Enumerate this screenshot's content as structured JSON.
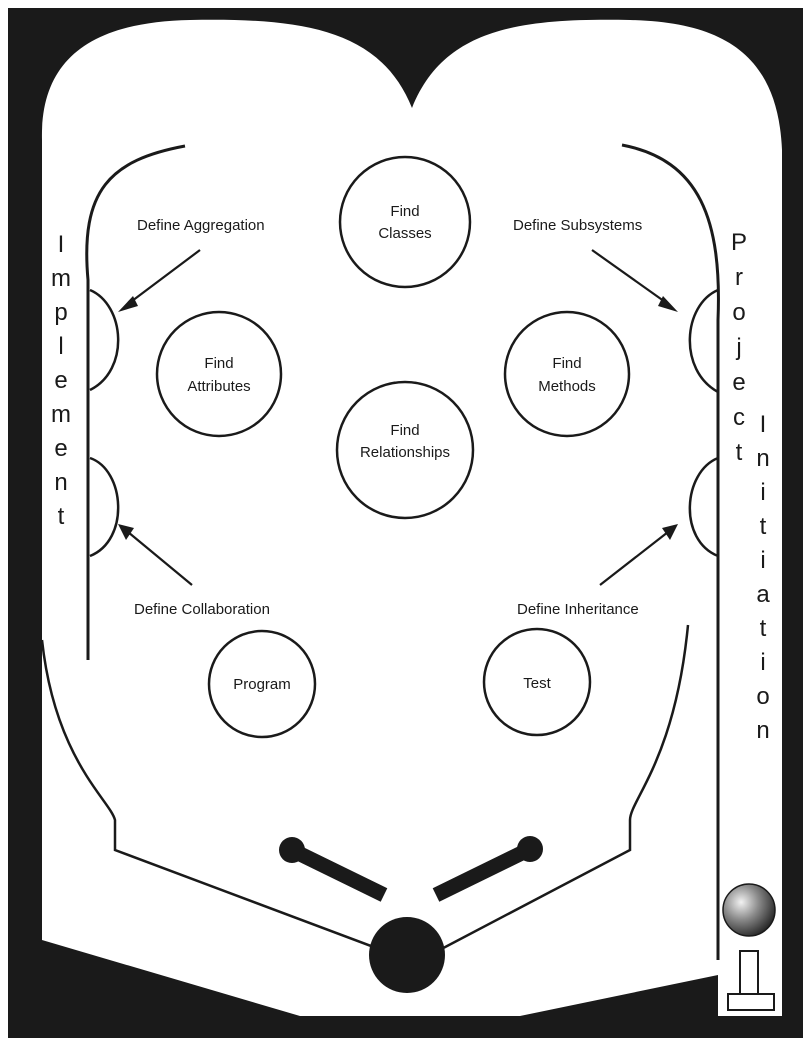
{
  "colors": {
    "frame": "#1a1a1a",
    "field": "#ffffff",
    "ink": "#1a1a1a"
  },
  "bumpers": {
    "find_classes": [
      "Find",
      "Classes"
    ],
    "find_attributes": [
      "Find",
      "Attributes"
    ],
    "find_methods": [
      "Find",
      "Methods"
    ],
    "find_relationships": [
      "Find",
      "Relationships"
    ],
    "program": "Program",
    "test": "Test"
  },
  "labels": {
    "define_aggregation": "Define Aggregation",
    "define_subsystems": "Define Subsystems",
    "define_collaboration": "Define Collaboration",
    "define_inheritance": "Define Inheritance"
  },
  "side_words": {
    "implement": [
      "I",
      "m",
      "p",
      "l",
      "e",
      "m",
      "e",
      "n",
      "t"
    ],
    "project": [
      "P",
      "r",
      "o",
      "j",
      "e",
      "c",
      "t"
    ],
    "initiation": [
      "I",
      "n",
      "i",
      "t",
      "i",
      "a",
      "t",
      "i",
      "o",
      "n"
    ]
  },
  "icons": [
    "flipper-left-icon",
    "flipper-right-icon",
    "drain-ball-icon",
    "plunger-ball-icon",
    "plunger-icon"
  ]
}
